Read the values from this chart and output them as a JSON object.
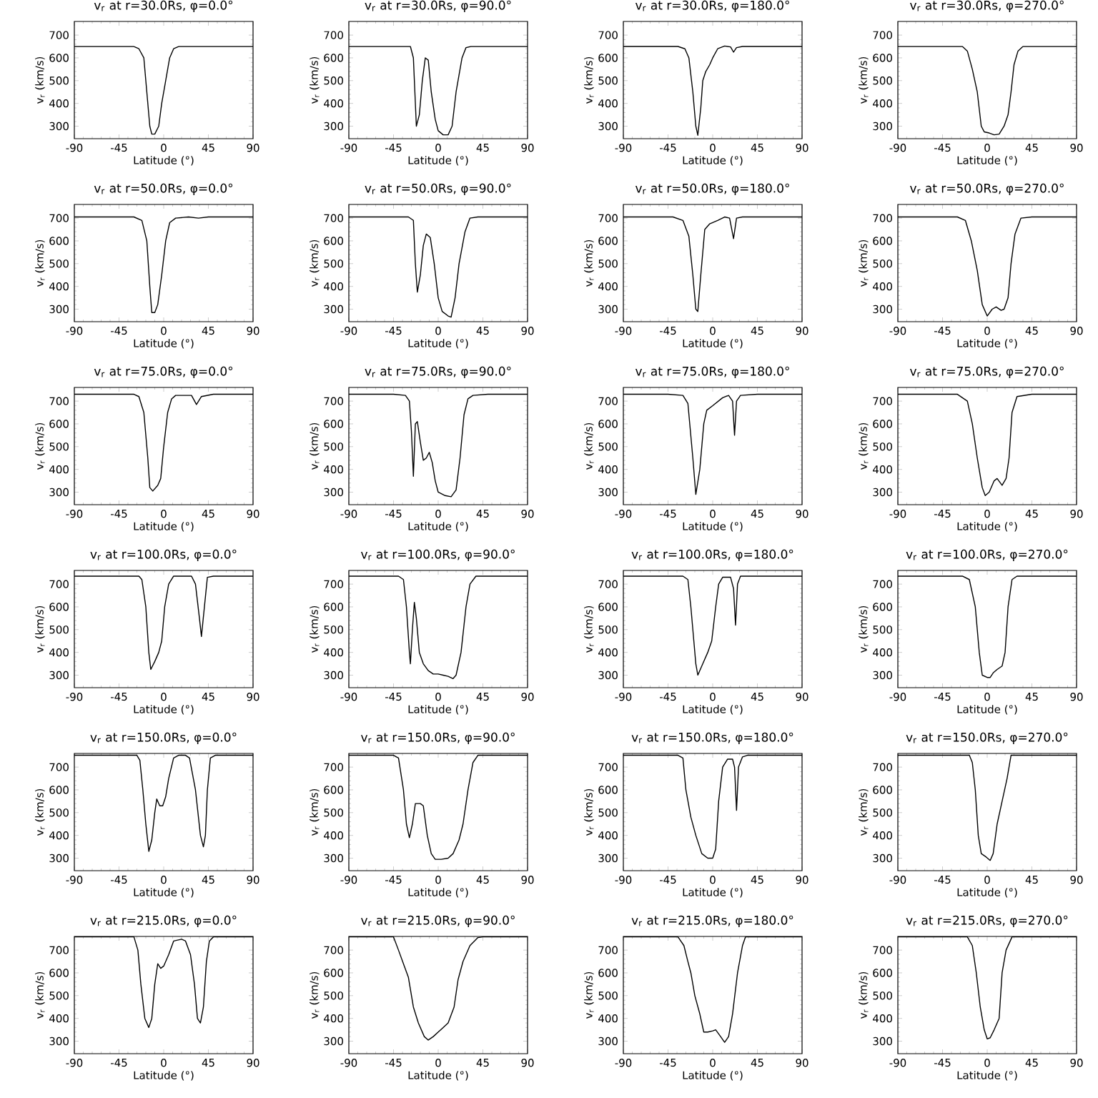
{
  "chart_data": [
    {
      "type": "line",
      "title": "v$_{r}$ at r=30.0Rs, φ=0.0°",
      "xlabel": "Latitude (°)",
      "ylabel": "v$_{r}$ (km/s)",
      "xlim": [
        -90,
        90
      ],
      "ylim": [
        245,
        760
      ],
      "xticks": [
        -90,
        -45,
        0,
        45,
        90
      ],
      "yticks": [
        300,
        400,
        500,
        600,
        700
      ],
      "x": [
        -90,
        -30,
        -25,
        -20,
        -17,
        -14,
        -12,
        -9,
        -5,
        -2,
        2,
        6,
        10,
        15,
        90
      ],
      "series": [
        {
          "color": "#000000",
          "values": [
            650,
            650,
            640,
            600,
            450,
            300,
            265,
            265,
            300,
            400,
            500,
            600,
            640,
            650,
            650
          ]
        }
      ]
    },
    {
      "type": "line",
      "title": "v$_{r}$ at r=30.0Rs, φ=90.0°",
      "xlabel": "Latitude (°)",
      "ylabel": "v$_{r}$ (km/s)",
      "xlim": [
        -90,
        90
      ],
      "ylim": [
        245,
        760
      ],
      "xticks": [
        -90,
        -45,
        0,
        45,
        90
      ],
      "yticks": [
        300,
        400,
        500,
        600,
        700
      ],
      "x": [
        -90,
        -28,
        -25,
        -22,
        -19,
        -16,
        -13,
        -10,
        -7,
        -3,
        0,
        5,
        10,
        14,
        18,
        24,
        28,
        33,
        90
      ],
      "series": [
        {
          "color": "#000000",
          "values": [
            650,
            650,
            600,
            300,
            350,
            500,
            600,
            590,
            450,
            330,
            280,
            262,
            262,
            300,
            450,
            600,
            645,
            650,
            650
          ]
        }
      ]
    },
    {
      "type": "line",
      "title": "v$_{r}$ at r=30.0Rs, φ=180.0°",
      "xlabel": "Latitude (°)",
      "ylabel": "v$_{r}$ (km/s)",
      "xlim": [
        -90,
        90
      ],
      "ylim": [
        245,
        760
      ],
      "xticks": [
        -90,
        -45,
        0,
        45,
        90
      ],
      "yticks": [
        300,
        400,
        500,
        600,
        700
      ],
      "x": [
        -90,
        -35,
        -28,
        -24,
        -20,
        -17,
        -15,
        -12,
        -10,
        -7,
        -3,
        0,
        5,
        12,
        18,
        21,
        24,
        30,
        90
      ],
      "series": [
        {
          "color": "#000000",
          "values": [
            650,
            650,
            640,
            600,
            450,
            300,
            260,
            380,
            500,
            540,
            570,
            600,
            640,
            652,
            648,
            625,
            645,
            650,
            650
          ]
        }
      ]
    },
    {
      "type": "line",
      "title": "v$_{r}$ at r=30.0Rs, φ=270.0°",
      "xlabel": "Latitude (°)",
      "ylabel": "v$_{r}$ (km/s)",
      "xlim": [
        -90,
        90
      ],
      "ylim": [
        245,
        760
      ],
      "xticks": [
        -90,
        -45,
        0,
        45,
        90
      ],
      "yticks": [
        300,
        400,
        500,
        600,
        700
      ],
      "x": [
        -90,
        -25,
        -20,
        -15,
        -10,
        -6,
        -3,
        2,
        7,
        12,
        17,
        21,
        24,
        27,
        31,
        36,
        90
      ],
      "series": [
        {
          "color": "#000000",
          "values": [
            650,
            650,
            630,
            550,
            450,
            300,
            275,
            270,
            262,
            265,
            300,
            350,
            450,
            570,
            630,
            650,
            650
          ]
        }
      ]
    },
    {
      "type": "line",
      "title": "v$_{r}$ at r=50.0Rs, φ=0.0°",
      "xlabel": "Latitude (°)",
      "ylabel": "v$_{r}$ (km/s)",
      "xlim": [
        -90,
        90
      ],
      "ylim": [
        245,
        760
      ],
      "xticks": [
        -90,
        -45,
        0,
        45,
        90
      ],
      "yticks": [
        300,
        400,
        500,
        600,
        700
      ],
      "x": [
        -90,
        -30,
        -22,
        -17,
        -14,
        -12,
        -9,
        -6,
        -2,
        2,
        6,
        12,
        25,
        35,
        45,
        90
      ],
      "series": [
        {
          "color": "#000000",
          "values": [
            705,
            705,
            690,
            600,
            400,
            285,
            285,
            320,
            450,
            600,
            680,
            700,
            705,
            700,
            705,
            705
          ]
        }
      ]
    },
    {
      "type": "line",
      "title": "v$_{r}$ at r=50.0Rs, φ=90.0°",
      "xlabel": "Latitude (°)",
      "ylabel": "v$_{r}$ (km/s)",
      "xlim": [
        -90,
        90
      ],
      "ylim": [
        245,
        760
      ],
      "xticks": [
        -90,
        -45,
        0,
        45,
        90
      ],
      "yticks": [
        300,
        400,
        500,
        600,
        700
      ],
      "x": [
        -90,
        -30,
        -25,
        -23,
        -21,
        -18,
        -15,
        -12,
        -8,
        -4,
        0,
        4,
        10,
        13,
        17,
        21,
        27,
        32,
        40,
        90
      ],
      "series": [
        {
          "color": "#000000",
          "values": [
            705,
            705,
            690,
            500,
            375,
            450,
            580,
            630,
            615,
            500,
            350,
            290,
            270,
            265,
            350,
            500,
            640,
            700,
            705,
            705
          ]
        }
      ]
    },
    {
      "type": "line",
      "title": "v$_{r}$ at r=50.0Rs, φ=180.0°",
      "xlabel": "Latitude (°)",
      "ylabel": "v$_{r}$ (km/s)",
      "xlim": [
        -90,
        90
      ],
      "ylim": [
        245,
        760
      ],
      "xticks": [
        -90,
        -45,
        0,
        45,
        90
      ],
      "yticks": [
        300,
        400,
        500,
        600,
        700
      ],
      "x": [
        -90,
        -40,
        -30,
        -24,
        -20,
        -17,
        -15,
        -12,
        -8,
        -3,
        5,
        12,
        17,
        21,
        24,
        30,
        90
      ],
      "series": [
        {
          "color": "#000000",
          "values": [
            705,
            705,
            690,
            620,
            450,
            300,
            290,
            450,
            650,
            675,
            690,
            705,
            700,
            610,
            700,
            705,
            705
          ]
        }
      ]
    },
    {
      "type": "line",
      "title": "v$_{r}$ at r=50.0Rs, φ=270.0°",
      "xlabel": "Latitude (°)",
      "ylabel": "v$_{r}$ (km/s)",
      "xlim": [
        -90,
        90
      ],
      "ylim": [
        245,
        760
      ],
      "xticks": [
        -90,
        -45,
        0,
        45,
        90
      ],
      "yticks": [
        300,
        400,
        500,
        600,
        700
      ],
      "x": [
        -90,
        -30,
        -22,
        -16,
        -10,
        -5,
        -1,
        0,
        5,
        9,
        14,
        17,
        21,
        24,
        28,
        34,
        45,
        90
      ],
      "series": [
        {
          "color": "#000000",
          "values": [
            705,
            705,
            690,
            600,
            470,
            320,
            280,
            270,
            300,
            310,
            295,
            300,
            350,
            500,
            630,
            700,
            705,
            705
          ]
        }
      ]
    },
    {
      "type": "line",
      "title": "v$_{r}$ at r=75.0Rs, φ=0.0°",
      "xlabel": "Latitude (°)",
      "ylabel": "v$_{r}$ (km/s)",
      "xlim": [
        -90,
        90
      ],
      "ylim": [
        245,
        760
      ],
      "xticks": [
        -90,
        -45,
        0,
        45,
        90
      ],
      "yticks": [
        300,
        400,
        500,
        600,
        700
      ],
      "x": [
        -90,
        -30,
        -25,
        -20,
        -16,
        -14,
        -11,
        -6,
        -3,
        0,
        4,
        8,
        12,
        28,
        33,
        38,
        50,
        90
      ],
      "series": [
        {
          "color": "#000000",
          "values": [
            730,
            730,
            720,
            650,
            450,
            320,
            305,
            330,
            360,
            500,
            650,
            710,
            725,
            725,
            685,
            720,
            730,
            730
          ]
        }
      ]
    },
    {
      "type": "line",
      "title": "v$_{r}$ at r=75.0Rs, φ=90.0°",
      "xlabel": "Latitude (°)",
      "ylabel": "v$_{r}$ (km/s)",
      "xlim": [
        -90,
        90
      ],
      "ylim": [
        245,
        760
      ],
      "xticks": [
        -90,
        -45,
        0,
        45,
        90
      ],
      "yticks": [
        300,
        400,
        500,
        600,
        700
      ],
      "x": [
        -90,
        -45,
        -33,
        -29,
        -27,
        -25,
        -23,
        -21,
        -18,
        -15,
        -12,
        -9,
        -6,
        -3,
        0,
        7,
        13,
        18,
        22,
        26,
        30,
        35,
        50,
        90
      ],
      "series": [
        {
          "color": "#000000",
          "values": [
            730,
            730,
            725,
            700,
            570,
            370,
            600,
            610,
            520,
            440,
            450,
            475,
            430,
            350,
            300,
            285,
            280,
            310,
            450,
            640,
            710,
            725,
            730,
            730
          ]
        }
      ]
    },
    {
      "type": "line",
      "title": "v$_{r}$ at r=75.0Rs, φ=180.0°",
      "xlabel": "Latitude (°)",
      "ylabel": "v$_{r}$ (km/s)",
      "xlim": [
        -90,
        90
      ],
      "ylim": [
        245,
        760
      ],
      "xticks": [
        -90,
        -45,
        0,
        45,
        90
      ],
      "yticks": [
        300,
        400,
        500,
        600,
        700
      ],
      "x": [
        -90,
        -45,
        -30,
        -25,
        -20,
        -17,
        -13,
        -9,
        -6,
        0,
        10,
        16,
        20,
        22,
        24,
        28,
        45,
        90
      ],
      "series": [
        {
          "color": "#000000",
          "values": [
            730,
            730,
            725,
            690,
            450,
            290,
            400,
            600,
            660,
            680,
            715,
            725,
            700,
            550,
            700,
            725,
            730,
            730
          ]
        }
      ]
    },
    {
      "type": "line",
      "title": "v$_{r}$ at r=75.0Rs, φ=270.0°",
      "xlabel": "Latitude (°)",
      "ylabel": "v$_{r}$ (km/s)",
      "xlim": [
        -90,
        90
      ],
      "ylim": [
        245,
        760
      ],
      "xticks": [
        -90,
        -45,
        0,
        45,
        90
      ],
      "yticks": [
        300,
        400,
        500,
        600,
        700
      ],
      "x": [
        -90,
        -30,
        -20,
        -15,
        -10,
        -5,
        -2,
        2,
        7,
        10,
        15,
        19,
        22,
        25,
        30,
        45,
        90
      ],
      "series": [
        {
          "color": "#000000",
          "values": [
            730,
            730,
            700,
            600,
            450,
            320,
            285,
            300,
            350,
            360,
            330,
            360,
            450,
            650,
            720,
            730,
            730
          ]
        }
      ]
    },
    {
      "type": "line",
      "title": "v$_{r}$ at r=100.0Rs, φ=0.0°",
      "xlabel": "Latitude (°)",
      "ylabel": "v$_{r}$ (km/s)",
      "xlim": [
        -90,
        90
      ],
      "ylim": [
        245,
        760
      ],
      "xticks": [
        -90,
        -45,
        0,
        45,
        90
      ],
      "yticks": [
        300,
        400,
        500,
        600,
        700
      ],
      "x": [
        -90,
        -25,
        -22,
        -18,
        -15,
        -13,
        -9,
        -5,
        -2,
        1,
        5,
        10,
        28,
        32,
        36,
        38,
        41,
        44,
        50,
        90
      ],
      "series": [
        {
          "color": "#000000",
          "values": [
            735,
            735,
            720,
            600,
            400,
            325,
            360,
            400,
            450,
            600,
            700,
            735,
            735,
            700,
            550,
            470,
            600,
            730,
            735,
            735
          ]
        }
      ]
    },
    {
      "type": "line",
      "title": "v$_{r}$ at r=100.0Rs, φ=90.0°",
      "xlabel": "Latitude (°)",
      "ylabel": "v$_{r}$ (km/s)",
      "xlim": [
        -90,
        90
      ],
      "ylim": [
        245,
        760
      ],
      "xticks": [
        -90,
        -45,
        0,
        45,
        90
      ],
      "yticks": [
        300,
        400,
        500,
        600,
        700
      ],
      "x": [
        -90,
        -40,
        -35,
        -32,
        -29,
        -28,
        -26,
        -24,
        -22,
        -19,
        -15,
        -10,
        -5,
        0,
        5,
        10,
        15,
        18,
        23,
        28,
        32,
        38,
        90
      ],
      "series": [
        {
          "color": "#000000",
          "values": [
            735,
            735,
            720,
            600,
            400,
            350,
            500,
            620,
            550,
            400,
            350,
            320,
            305,
            305,
            300,
            295,
            285,
            300,
            400,
            600,
            700,
            735,
            735
          ]
        }
      ]
    },
    {
      "type": "line",
      "title": "v$_{r}$ at r=100.0Rs, φ=180.0°",
      "xlabel": "Latitude (°)",
      "ylabel": "v$_{r}$ (km/s)",
      "xlim": [
        -90,
        90
      ],
      "ylim": [
        245,
        760
      ],
      "xticks": [
        -90,
        -45,
        0,
        45,
        90
      ],
      "yticks": [
        300,
        400,
        500,
        600,
        700
      ],
      "x": [
        -90,
        -30,
        -25,
        -22,
        -19,
        -17,
        -15,
        -10,
        -5,
        -1,
        3,
        6,
        10,
        18,
        21,
        23,
        25,
        28,
        90
      ],
      "series": [
        {
          "color": "#000000",
          "values": [
            735,
            735,
            720,
            600,
            450,
            350,
            300,
            350,
            400,
            450,
            600,
            700,
            730,
            730,
            680,
            520,
            700,
            735,
            735
          ]
        }
      ]
    },
    {
      "type": "line",
      "title": "v$_{r}$ at r=100.0Rs, φ=270.0°",
      "xlabel": "Latitude (°)",
      "ylabel": "v$_{r}$ (km/s)",
      "xlim": [
        -90,
        90
      ],
      "ylim": [
        245,
        760
      ],
      "xticks": [
        -90,
        -45,
        0,
        45,
        90
      ],
      "yticks": [
        300,
        400,
        500,
        600,
        700
      ],
      "x": [
        -90,
        -25,
        -18,
        -12,
        -8,
        -5,
        0,
        3,
        6,
        10,
        15,
        18,
        21,
        25,
        30,
        90
      ],
      "series": [
        {
          "color": "#000000",
          "values": [
            735,
            735,
            720,
            600,
            400,
            300,
            290,
            290,
            310,
            325,
            340,
            400,
            600,
            720,
            735,
            735
          ]
        }
      ]
    },
    {
      "type": "line",
      "title": "v$_{r}$ at r=150.0Rs, φ=0.0°",
      "xlabel": "Latitude (°)",
      "ylabel": "v$_{r}$ (km/s)",
      "xlim": [
        -90,
        90
      ],
      "ylim": [
        245,
        760
      ],
      "xticks": [
        -90,
        -45,
        0,
        45,
        90
      ],
      "yticks": [
        300,
        400,
        500,
        600,
        700
      ],
      "x": [
        -90,
        -27,
        -24,
        -21,
        -18,
        -15,
        -12,
        -9,
        -7,
        -4,
        -1,
        2,
        5,
        10,
        15,
        22,
        26,
        32,
        37,
        40,
        42,
        44,
        47,
        52,
        90
      ],
      "series": [
        {
          "color": "#000000",
          "values": [
            752,
            752,
            730,
            600,
            450,
            330,
            380,
            500,
            560,
            530,
            530,
            570,
            650,
            740,
            752,
            752,
            740,
            600,
            400,
            350,
            400,
            600,
            740,
            752,
            752
          ]
        }
      ]
    },
    {
      "type": "line",
      "title": "v$_{r}$ at r=150.0Rs, φ=90.0°",
      "xlabel": "Latitude (°)",
      "ylabel": "v$_{r}$ (km/s)",
      "xlim": [
        -90,
        90
      ],
      "ylim": [
        245,
        760
      ],
      "xticks": [
        -90,
        -45,
        0,
        45,
        90
      ],
      "yticks": [
        300,
        400,
        500,
        600,
        700
      ],
      "x": [
        -90,
        -45,
        -40,
        -35,
        -32,
        -29,
        -26,
        -23,
        -18,
        -15,
        -11,
        -7,
        -3,
        3,
        10,
        15,
        21,
        25,
        30,
        35,
        40,
        90
      ],
      "series": [
        {
          "color": "#000000",
          "values": [
            752,
            752,
            740,
            600,
            450,
            390,
            450,
            540,
            540,
            530,
            400,
            320,
            295,
            295,
            300,
            320,
            380,
            450,
            600,
            720,
            752,
            752
          ]
        }
      ]
    },
    {
      "type": "line",
      "title": "v$_{r}$ at r=150.0Rs, φ=180.0°",
      "xlabel": "Latitude (°)",
      "ylabel": "v$_{r}$ (km/s)",
      "xlim": [
        -90,
        90
      ],
      "ylim": [
        245,
        760
      ],
      "xticks": [
        -90,
        -45,
        0,
        45,
        90
      ],
      "yticks": [
        300,
        400,
        500,
        600,
        700
      ],
      "x": [
        -90,
        -35,
        -30,
        -27,
        -22,
        -17,
        -11,
        -5,
        0,
        3,
        6,
        10,
        15,
        20,
        22,
        24,
        26,
        30,
        35,
        90
      ],
      "series": [
        {
          "color": "#000000",
          "values": [
            752,
            752,
            740,
            600,
            480,
            400,
            320,
            300,
            300,
            340,
            550,
            700,
            735,
            735,
            700,
            510,
            700,
            745,
            752,
            752
          ]
        }
      ]
    },
    {
      "type": "line",
      "title": "v$_{r}$ at r=150.0Rs, φ=270.0°",
      "xlabel": "Latitude (°)",
      "ylabel": "v$_{r}$ (km/s)",
      "xlim": [
        -90,
        90
      ],
      "ylim": [
        245,
        760
      ],
      "xticks": [
        -90,
        -45,
        0,
        45,
        90
      ],
      "yticks": [
        300,
        400,
        500,
        600,
        700
      ],
      "x": [
        -90,
        -18,
        -15,
        -12,
        -9,
        -6,
        -1,
        3,
        6,
        10,
        15,
        20,
        24,
        90
      ],
      "series": [
        {
          "color": "#000000",
          "values": [
            752,
            752,
            720,
            600,
            400,
            320,
            305,
            290,
            320,
            450,
            550,
            650,
            752,
            752
          ]
        }
      ]
    },
    {
      "type": "line",
      "title": "v$_{r}$ at r=215.0Rs, φ=0.0°",
      "xlabel": "Latitude (°)",
      "ylabel": "v$_{r}$ (km/s)",
      "xlim": [
        -90,
        90
      ],
      "ylim": [
        245,
        760
      ],
      "xticks": [
        -90,
        -45,
        0,
        45,
        90
      ],
      "yticks": [
        300,
        400,
        500,
        600,
        700
      ],
      "x": [
        -90,
        -30,
        -26,
        -23,
        -19,
        -15,
        -12,
        -9,
        -6,
        -3,
        0,
        5,
        10,
        18,
        22,
        27,
        31,
        34,
        37,
        40,
        43,
        46,
        50,
        90
      ],
      "series": [
        {
          "color": "#000000",
          "values": [
            758,
            758,
            700,
            550,
            400,
            360,
            400,
            550,
            640,
            620,
            630,
            680,
            740,
            748,
            740,
            680,
            550,
            400,
            380,
            450,
            650,
            740,
            758,
            758
          ]
        }
      ]
    },
    {
      "type": "line",
      "title": "v$_{r}$ at r=215.0Rs, φ=90.0°",
      "xlabel": "Latitude (°)",
      "ylabel": "v$_{r}$ (km/s)",
      "xlim": [
        -90,
        90
      ],
      "ylim": [
        245,
        760
      ],
      "xticks": [
        -90,
        -45,
        0,
        45,
        90
      ],
      "yticks": [
        300,
        400,
        500,
        600,
        700
      ],
      "x": [
        -90,
        -45,
        -40,
        -35,
        -30,
        -25,
        -20,
        -14,
        -10,
        -5,
        0,
        5,
        10,
        16,
        20,
        25,
        32,
        40,
        45,
        90
      ],
      "series": [
        {
          "color": "#000000",
          "values": [
            758,
            758,
            700,
            640,
            580,
            450,
            380,
            320,
            305,
            320,
            340,
            360,
            380,
            450,
            570,
            650,
            720,
            755,
            758,
            758
          ]
        }
      ]
    },
    {
      "type": "line",
      "title": "v$_{r}$ at r=215.0Rs, φ=180.0°",
      "xlabel": "Latitude (°)",
      "ylabel": "v$_{r}$ (km/s)",
      "xlim": [
        -90,
        90
      ],
      "ylim": [
        245,
        760
      ],
      "xticks": [
        -90,
        -45,
        0,
        45,
        90
      ],
      "yticks": [
        300,
        400,
        500,
        600,
        700
      ],
      "x": [
        -90,
        -35,
        -29,
        -25,
        -22,
        -18,
        -13,
        -9,
        -5,
        0,
        3,
        8,
        12,
        16,
        20,
        25,
        30,
        33,
        90
      ],
      "series": [
        {
          "color": "#000000",
          "values": [
            758,
            758,
            720,
            650,
            600,
            500,
            420,
            340,
            340,
            345,
            350,
            320,
            295,
            320,
            420,
            600,
            720,
            758,
            758
          ]
        }
      ]
    },
    {
      "type": "line",
      "title": "v$_{r}$ at r=215.0Rs, φ=270.0°",
      "xlabel": "Latitude (°)",
      "ylabel": "v$_{r}$ (km/s)",
      "xlim": [
        -90,
        90
      ],
      "ylim": [
        245,
        760
      ],
      "xticks": [
        -90,
        -45,
        0,
        45,
        90
      ],
      "yticks": [
        300,
        400,
        500,
        600,
        700
      ],
      "x": [
        -90,
        -20,
        -15,
        -11,
        -7,
        -3,
        0,
        3,
        7,
        12,
        15,
        19,
        25,
        90
      ],
      "series": [
        {
          "color": "#000000",
          "values": [
            758,
            758,
            720,
            600,
            450,
            350,
            310,
            315,
            350,
            400,
            600,
            700,
            758,
            758
          ]
        }
      ]
    }
  ]
}
